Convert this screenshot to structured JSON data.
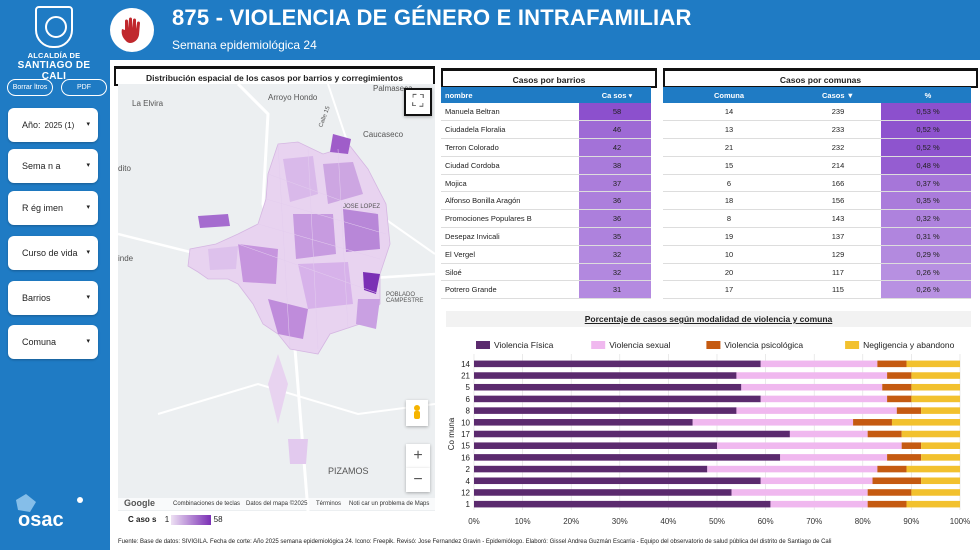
{
  "sidebar": {
    "logo_line1": "ALCALDÍA DE",
    "logo_line2": "SANTIAGO DE CALI",
    "clear_filters": "Borrar ltros",
    "pdf": "PDF",
    "filters": [
      {
        "label": "Año:",
        "value": "2025  (1)"
      },
      {
        "label": "Sema n a",
        "value": ""
      },
      {
        "label": "R ég imen",
        "value": ""
      },
      {
        "label": "Curso de vida",
        "value": ""
      },
      {
        "label": "Barrios",
        "value": ""
      },
      {
        "label": "Comuna",
        "value": ""
      }
    ],
    "osac": "osac"
  },
  "header": {
    "title": "875 - VIOLENCIA DE GÉNERO E INTRAFAMILIAR",
    "subtitle": "Semana epidemiológica 24"
  },
  "map": {
    "title": "Distribución espacial de los casos por barrios y corregimientos",
    "labels": [
      "La Elvira",
      "Arroyo Hondo",
      "Palmaseca",
      "Caucaseco",
      "dito",
      "inde",
      "PIZAMOS",
      "POBLADO CAMPESTRE",
      "Calle 15",
      "JOSE LOPEZ"
    ],
    "footer": {
      "google": "Google",
      "shortcuts": "Combinaciones de teclas",
      "data": "Datos del mapa ©2025",
      "terms": "Términos",
      "report": "Noti car un problema de Maps"
    },
    "scale_label": "C aso s",
    "scale_min": "1",
    "scale_max": "58",
    "colors": {
      "low": "#ede0f3",
      "high": "#7b2fb5"
    }
  },
  "barrios": {
    "title": "Casos por barrios",
    "headers": [
      "nombre",
      "Ca sos ▾"
    ],
    "rows": [
      [
        "Manuela Beltran",
        58
      ],
      [
        "Ciudadela Floralia",
        46
      ],
      [
        "Terron Colorado",
        42
      ],
      [
        "Ciudad Cordoba",
        38
      ],
      [
        "Mojica",
        37
      ],
      [
        "Alfonso Bonilla Aragón",
        36
      ],
      [
        "Promociones Populares B",
        36
      ],
      [
        "Desepaz Invicali",
        35
      ],
      [
        "El Vergel",
        32
      ],
      [
        "Siloé",
        32
      ],
      [
        "Potrero Grande",
        31
      ]
    ]
  },
  "comunas": {
    "title": "Casos por comunas",
    "headers": [
      "Comuna",
      "Casos ▼",
      "%"
    ],
    "rows": [
      [
        "14",
        239,
        "0,53 %"
      ],
      [
        "13",
        233,
        "0,52 %"
      ],
      [
        "21",
        232,
        "0,52 %"
      ],
      [
        "15",
        214,
        "0,48 %"
      ],
      [
        "6",
        166,
        "0,37 %"
      ],
      [
        "18",
        156,
        "0,35 %"
      ],
      [
        "8",
        143,
        "0,32 %"
      ],
      [
        "19",
        137,
        "0,31 %"
      ],
      [
        "10",
        129,
        "0,29 %"
      ],
      [
        "20",
        117,
        "0,26 %"
      ],
      [
        "17",
        115,
        "0,26 %"
      ]
    ]
  },
  "chart_data": {
    "type": "bar",
    "orientation": "horizontal",
    "stacked": "percent",
    "title": "Porcentaje de casos según modalidad de violencia y comuna",
    "ylabel": "Co muna",
    "categories": [
      "14",
      "21",
      "5",
      "6",
      "8",
      "10",
      "17",
      "15",
      "16",
      "2",
      "4",
      "12",
      "1"
    ],
    "series": [
      {
        "name": "Violencia Física",
        "color": "#5b2a6e",
        "values": [
          59,
          54,
          55,
          59,
          54,
          45,
          65,
          50,
          63,
          48,
          59,
          53,
          61
        ]
      },
      {
        "name": "Violencia sexual",
        "color": "#f0b8ef",
        "values": [
          24,
          31,
          29,
          26,
          33,
          33,
          16,
          38,
          22,
          35,
          23,
          28,
          20
        ]
      },
      {
        "name": "Violencia psicológica",
        "color": "#c55a11",
        "values": [
          6,
          5,
          6,
          5,
          5,
          8,
          7,
          4,
          7,
          6,
          10,
          9,
          8
        ]
      },
      {
        "name": "Negligencia y abandono",
        "color": "#f2c12e",
        "values": [
          11,
          10,
          10,
          10,
          8,
          14,
          12,
          8,
          8,
          11,
          8,
          10,
          11
        ]
      }
    ],
    "xticks": [
      "0%",
      "10%",
      "20%",
      "30%",
      "40%",
      "50%",
      "60%",
      "70%",
      "80%",
      "90%",
      "100%"
    ],
    "legend": "top"
  },
  "footer": "Fuente: Base de datos: SIVIGILA. Fecha de corte: Año 2025 semana epidemiológica 24. Icono: Freepik. Revisó: Jose Fernandez Gravin - Epidemiólogo. Elaboró: Gissel Andrea Guzmán Escarria - Equipo del observatorio de salud pública del distrito de Santiago de Cali"
}
